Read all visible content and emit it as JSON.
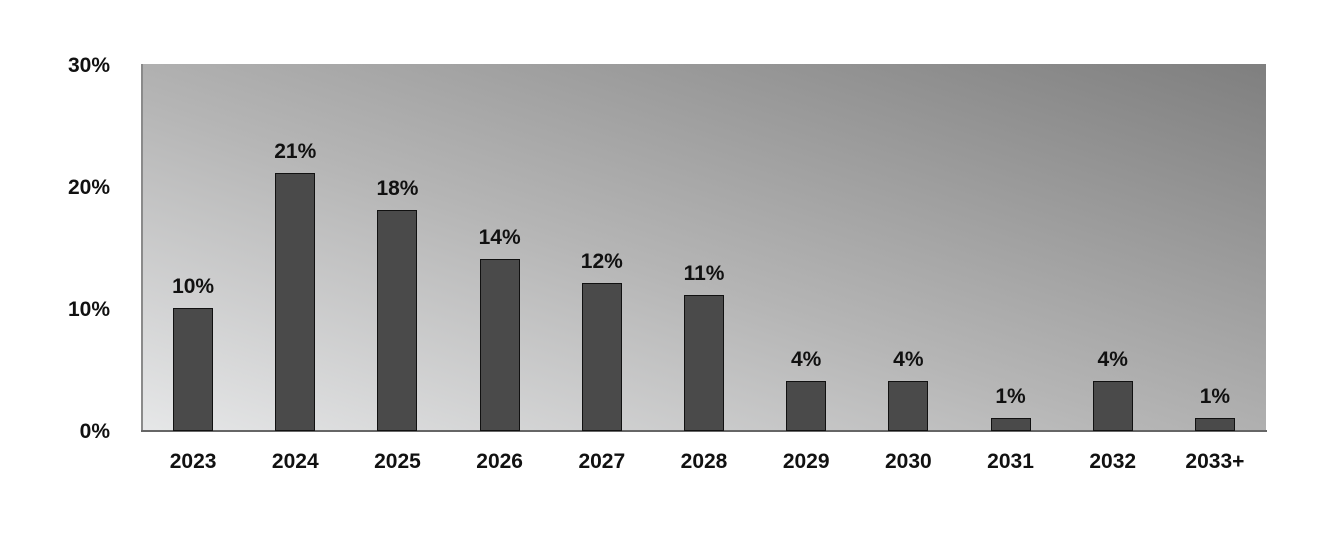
{
  "chart_data": {
    "type": "bar",
    "title": "",
    "xlabel": "",
    "ylabel": "",
    "categories": [
      "2023",
      "2024",
      "2025",
      "2026",
      "2027",
      "2028",
      "2029",
      "2030",
      "2031",
      "2032",
      "2033+"
    ],
    "values": [
      10,
      21,
      18,
      14,
      12,
      11,
      4,
      4,
      1,
      4,
      1
    ],
    "value_labels": [
      "10%",
      "21%",
      "18%",
      "14%",
      "12%",
      "11%",
      "4%",
      "4%",
      "1%",
      "4%",
      "1%"
    ],
    "ylim": [
      0,
      30
    ],
    "yticks": [
      "0%",
      "10%",
      "20%",
      "30%"
    ],
    "grid": false,
    "legend": null,
    "colors": {
      "bar": "#4a4a4a",
      "bar_border": "#111111",
      "background_light": "#e6e7e8",
      "background_dark": "#7f7f7f"
    }
  }
}
